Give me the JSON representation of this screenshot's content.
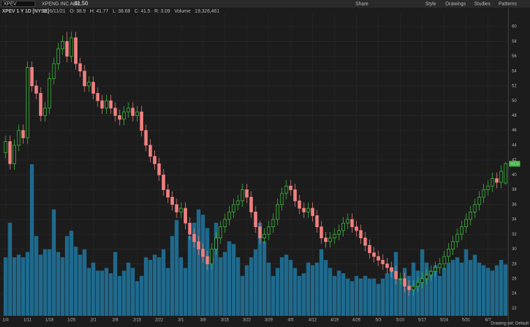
{
  "toolbar": {
    "symbol": "XPEV",
    "company": "XPENG INC ADR",
    "last": "41.50",
    "buttons": [
      "Share",
      "Style",
      "Drawings",
      "Studies",
      "Patterns"
    ]
  },
  "header": {
    "title": "XPEV 1 Y 1D [NYSE]",
    "fields": [
      "D: 6/11/21",
      "O: 38.9",
      "H: 41.77",
      "L: 38.68",
      "C: 41.5",
      "R: 3.09"
    ],
    "volume_label": "Volume",
    "volume_value": "19,326,461"
  },
  "footer": {
    "drawing_set": "Drawing set: Default"
  },
  "chart_data": {
    "type": "candlestick",
    "price_tag": 41.5,
    "up_color": "#3cbf3c",
    "down_color": "#f08080",
    "volume_color": "#1f6a8e",
    "grid": true,
    "ylim": [
      21,
      61.7
    ],
    "yticks": [
      22,
      24,
      26,
      28,
      30,
      32,
      34,
      36,
      38,
      40,
      42,
      44,
      46,
      48,
      50,
      52,
      54,
      56,
      58,
      60
    ],
    "categories": [
      "1/4",
      null,
      null,
      null,
      null,
      "1/11",
      null,
      null,
      null,
      null,
      "1/18",
      null,
      null,
      null,
      null,
      "1/25",
      null,
      null,
      null,
      null,
      "2/1",
      null,
      null,
      null,
      null,
      "2/8",
      null,
      null,
      null,
      null,
      "2/15",
      null,
      null,
      null,
      null,
      "2/22",
      null,
      null,
      null,
      null,
      "3/1",
      null,
      null,
      null,
      null,
      "3/8",
      null,
      null,
      null,
      null,
      "3/15",
      null,
      null,
      null,
      null,
      "3/22",
      null,
      null,
      null,
      null,
      "3/29",
      null,
      null,
      null,
      null,
      "4/5",
      null,
      null,
      null,
      null,
      "4/12",
      null,
      null,
      null,
      null,
      "4/19",
      null,
      null,
      null,
      null,
      "4/26",
      null,
      null,
      null,
      null,
      "5/3",
      null,
      null,
      null,
      null,
      "5/10",
      null,
      null,
      null,
      null,
      "5/17",
      null,
      null,
      null,
      null,
      "5/24",
      null,
      null,
      null,
      null,
      "5/31",
      null,
      null,
      null,
      null,
      "6/7",
      null,
      null,
      null,
      null
    ],
    "candles": [
      [
        43,
        45.3,
        42.2,
        44.5
      ],
      [
        44.5,
        45.3,
        40.7,
        41.5
      ],
      [
        41.5,
        44.8,
        40.7,
        44
      ],
      [
        44,
        46.8,
        43.2,
        46
      ],
      [
        46,
        46.8,
        44.2,
        45
      ],
      [
        45,
        55.3,
        44.2,
        54.5
      ],
      [
        54.5,
        55.3,
        51.2,
        52
      ],
      [
        52,
        52.8,
        50.2,
        51
      ],
      [
        51,
        51.8,
        47.2,
        48
      ],
      [
        48,
        49.8,
        47.2,
        49
      ],
      [
        49,
        53.8,
        48.2,
        53
      ],
      [
        53,
        55.8,
        52.2,
        55
      ],
      [
        55,
        57.8,
        54.2,
        57
      ],
      [
        57,
        58.8,
        56.2,
        58
      ],
      [
        58,
        59.3,
        55.2,
        56
      ],
      [
        56,
        59.3,
        55.2,
        58.5
      ],
      [
        58.5,
        59.3,
        54.2,
        55
      ],
      [
        55,
        55.8,
        53.2,
        54
      ],
      [
        54,
        54.8,
        51.2,
        52
      ],
      [
        52,
        53.3,
        51.2,
        52.5
      ],
      [
        52.5,
        53.3,
        50.2,
        51
      ],
      [
        51,
        51.8,
        49.2,
        50
      ],
      [
        50,
        50.8,
        48.2,
        49
      ],
      [
        49,
        50.8,
        48.2,
        50
      ],
      [
        50,
        50.8,
        48.2,
        49
      ],
      [
        49,
        49.8,
        47.2,
        48
      ],
      [
        48,
        48.8,
        46.7,
        47.5
      ],
      [
        47.5,
        49.3,
        46.7,
        48.5
      ],
      [
        48.5,
        49.8,
        47.7,
        49
      ],
      [
        49,
        49.8,
        47.2,
        48
      ],
      [
        48,
        49.3,
        47.2,
        48.5
      ],
      [
        48.5,
        49.3,
        45.2,
        46
      ],
      [
        46,
        46.8,
        43.2,
        44
      ],
      [
        44,
        44.8,
        41.7,
        42.5
      ],
      [
        42.5,
        43.3,
        40.7,
        41.5
      ],
      [
        41.5,
        42.3,
        39.2,
        40
      ],
      [
        40,
        40.8,
        37.2,
        38
      ],
      [
        38,
        38.8,
        36.2,
        37
      ],
      [
        37,
        37.8,
        35.2,
        36
      ],
      [
        36,
        36.8,
        34.2,
        35
      ],
      [
        35,
        36.3,
        34.2,
        35.5
      ],
      [
        35.5,
        36.3,
        32.7,
        33.5
      ],
      [
        33.5,
        34.3,
        31.2,
        32
      ],
      [
        32,
        32.8,
        30.2,
        31
      ],
      [
        31,
        31.8,
        29.2,
        30
      ],
      [
        30,
        30.8,
        28.2,
        29
      ],
      [
        29,
        29.8,
        27.2,
        28
      ],
      [
        28,
        30.8,
        27.2,
        30
      ],
      [
        30,
        32.3,
        29.2,
        31.5
      ],
      [
        31.5,
        33.8,
        30.7,
        33
      ],
      [
        33,
        34.8,
        32.2,
        34
      ],
      [
        34,
        35.8,
        33.2,
        35
      ],
      [
        35,
        36.8,
        34.2,
        36
      ],
      [
        36,
        37.3,
        35.2,
        36.5
      ],
      [
        36.5,
        38.8,
        35.7,
        38
      ],
      [
        38,
        38.8,
        36.2,
        37
      ],
      [
        37,
        37.8,
        34.2,
        35
      ],
      [
        35,
        35.8,
        32.2,
        33
      ],
      [
        33,
        33.8,
        30.7,
        31.5
      ],
      [
        31.5,
        32.8,
        30.7,
        32
      ],
      [
        32,
        33.8,
        31.2,
        33
      ],
      [
        33,
        34.8,
        32.2,
        34
      ],
      [
        34,
        36.8,
        33.2,
        36
      ],
      [
        36,
        38.3,
        35.2,
        37.5
      ],
      [
        37.5,
        39.3,
        36.7,
        38.5
      ],
      [
        38.5,
        39.3,
        37.2,
        38
      ],
      [
        38,
        38.8,
        35.7,
        36.5
      ],
      [
        36.5,
        37.3,
        34.7,
        35.5
      ],
      [
        35.5,
        36.3,
        34.2,
        35
      ],
      [
        35,
        36.3,
        34.2,
        35.5
      ],
      [
        35.5,
        36.3,
        33.7,
        34.5
      ],
      [
        34.5,
        35.3,
        32.2,
        33
      ],
      [
        33,
        33.8,
        30.7,
        31.5
      ],
      [
        31.5,
        32.3,
        30.2,
        31
      ],
      [
        31,
        32.3,
        30.2,
        31.5
      ],
      [
        31.5,
        32.8,
        30.7,
        32
      ],
      [
        32,
        33.3,
        31.2,
        32.5
      ],
      [
        32.5,
        34.3,
        31.7,
        33.5
      ],
      [
        33.5,
        34.8,
        32.7,
        34
      ],
      [
        34,
        34.8,
        32.2,
        33
      ],
      [
        33,
        33.8,
        31.7,
        32.5
      ],
      [
        32.5,
        33.3,
        30.7,
        31.5
      ],
      [
        31.5,
        32.3,
        29.7,
        30.5
      ],
      [
        30.5,
        31.3,
        28.7,
        29.5
      ],
      [
        29.5,
        30.3,
        28.2,
        29
      ],
      [
        29,
        29.8,
        27.7,
        28.5
      ],
      [
        28.5,
        29.3,
        27.2,
        28
      ],
      [
        28,
        28.8,
        26.7,
        27.5
      ],
      [
        27.5,
        28.3,
        26.2,
        27
      ],
      [
        27,
        27.8,
        25.2,
        26
      ],
      [
        26,
        26.8,
        25.2,
        26
      ],
      [
        26,
        26.8,
        24.2,
        25
      ],
      [
        25,
        25.8,
        23.7,
        24.5
      ],
      [
        24.5,
        25.8,
        23.7,
        25
      ],
      [
        25,
        26.3,
        24.2,
        25.5
      ],
      [
        25.5,
        26.8,
        24.7,
        26
      ],
      [
        26,
        27.3,
        25.2,
        26.5
      ],
      [
        26.5,
        27.8,
        25.7,
        27
      ],
      [
        27,
        28.3,
        26.2,
        27.5
      ],
      [
        27.5,
        28.8,
        26.7,
        28
      ],
      [
        28,
        29.8,
        27.2,
        29
      ],
      [
        29,
        30.8,
        28.2,
        30
      ],
      [
        30,
        31.8,
        29.2,
        31
      ],
      [
        31,
        32.8,
        30.2,
        32
      ],
      [
        32,
        33.8,
        31.2,
        33
      ],
      [
        33,
        34.8,
        32.2,
        34
      ],
      [
        34,
        35.8,
        33.2,
        35
      ],
      [
        35,
        36.8,
        34.2,
        36
      ],
      [
        36,
        37.8,
        35.2,
        37
      ],
      [
        37,
        38.8,
        36.2,
        38
      ],
      [
        38,
        39.3,
        37.2,
        38.5
      ],
      [
        38.5,
        40.3,
        37.7,
        39.5
      ],
      [
        39.5,
        40.3,
        38.2,
        39
      ],
      [
        39,
        41.3,
        38.2,
        40.5
      ],
      [
        38.9,
        41.77,
        38.68,
        41.5
      ]
    ],
    "volumes": [
      22000000,
      35000000,
      22000000,
      23000000,
      22000000,
      24000000,
      57000000,
      30000000,
      23000000,
      25000000,
      25000000,
      40000000,
      24000000,
      22000000,
      30000000,
      32000000,
      26000000,
      23000000,
      25000000,
      18000000,
      20000000,
      17000000,
      17000000,
      18000000,
      16000000,
      24000000,
      15000000,
      17000000,
      20000000,
      18000000,
      13000000,
      15000000,
      22000000,
      21000000,
      23000000,
      22000000,
      25000000,
      18000000,
      30000000,
      36000000,
      22000000,
      18000000,
      30000000,
      35000000,
      40000000,
      38000000,
      33000000,
      22000000,
      35000000,
      22000000,
      24000000,
      28000000,
      27000000,
      22000000,
      15000000,
      19000000,
      22000000,
      25000000,
      35000000,
      28000000,
      20000000,
      15000000,
      18000000,
      22000000,
      23000000,
      21000000,
      18000000,
      15000000,
      16000000,
      20000000,
      19000000,
      20000000,
      25000000,
      21000000,
      18000000,
      15000000,
      17000000,
      16000000,
      14000000,
      13000000,
      15000000,
      14000000,
      15000000,
      14000000,
      14000000,
      12000000,
      14000000,
      16000000,
      18000000,
      24000000,
      14000000,
      18000000,
      15000000,
      20000000,
      17000000,
      25000000,
      20000000,
      17000000,
      19000000,
      15000000,
      18000000,
      20000000,
      21000000,
      22000000,
      20000000,
      25000000,
      21000000,
      23000000,
      20000000,
      19000000,
      18000000,
      17000000,
      19000000,
      21000000,
      19326461
    ]
  }
}
